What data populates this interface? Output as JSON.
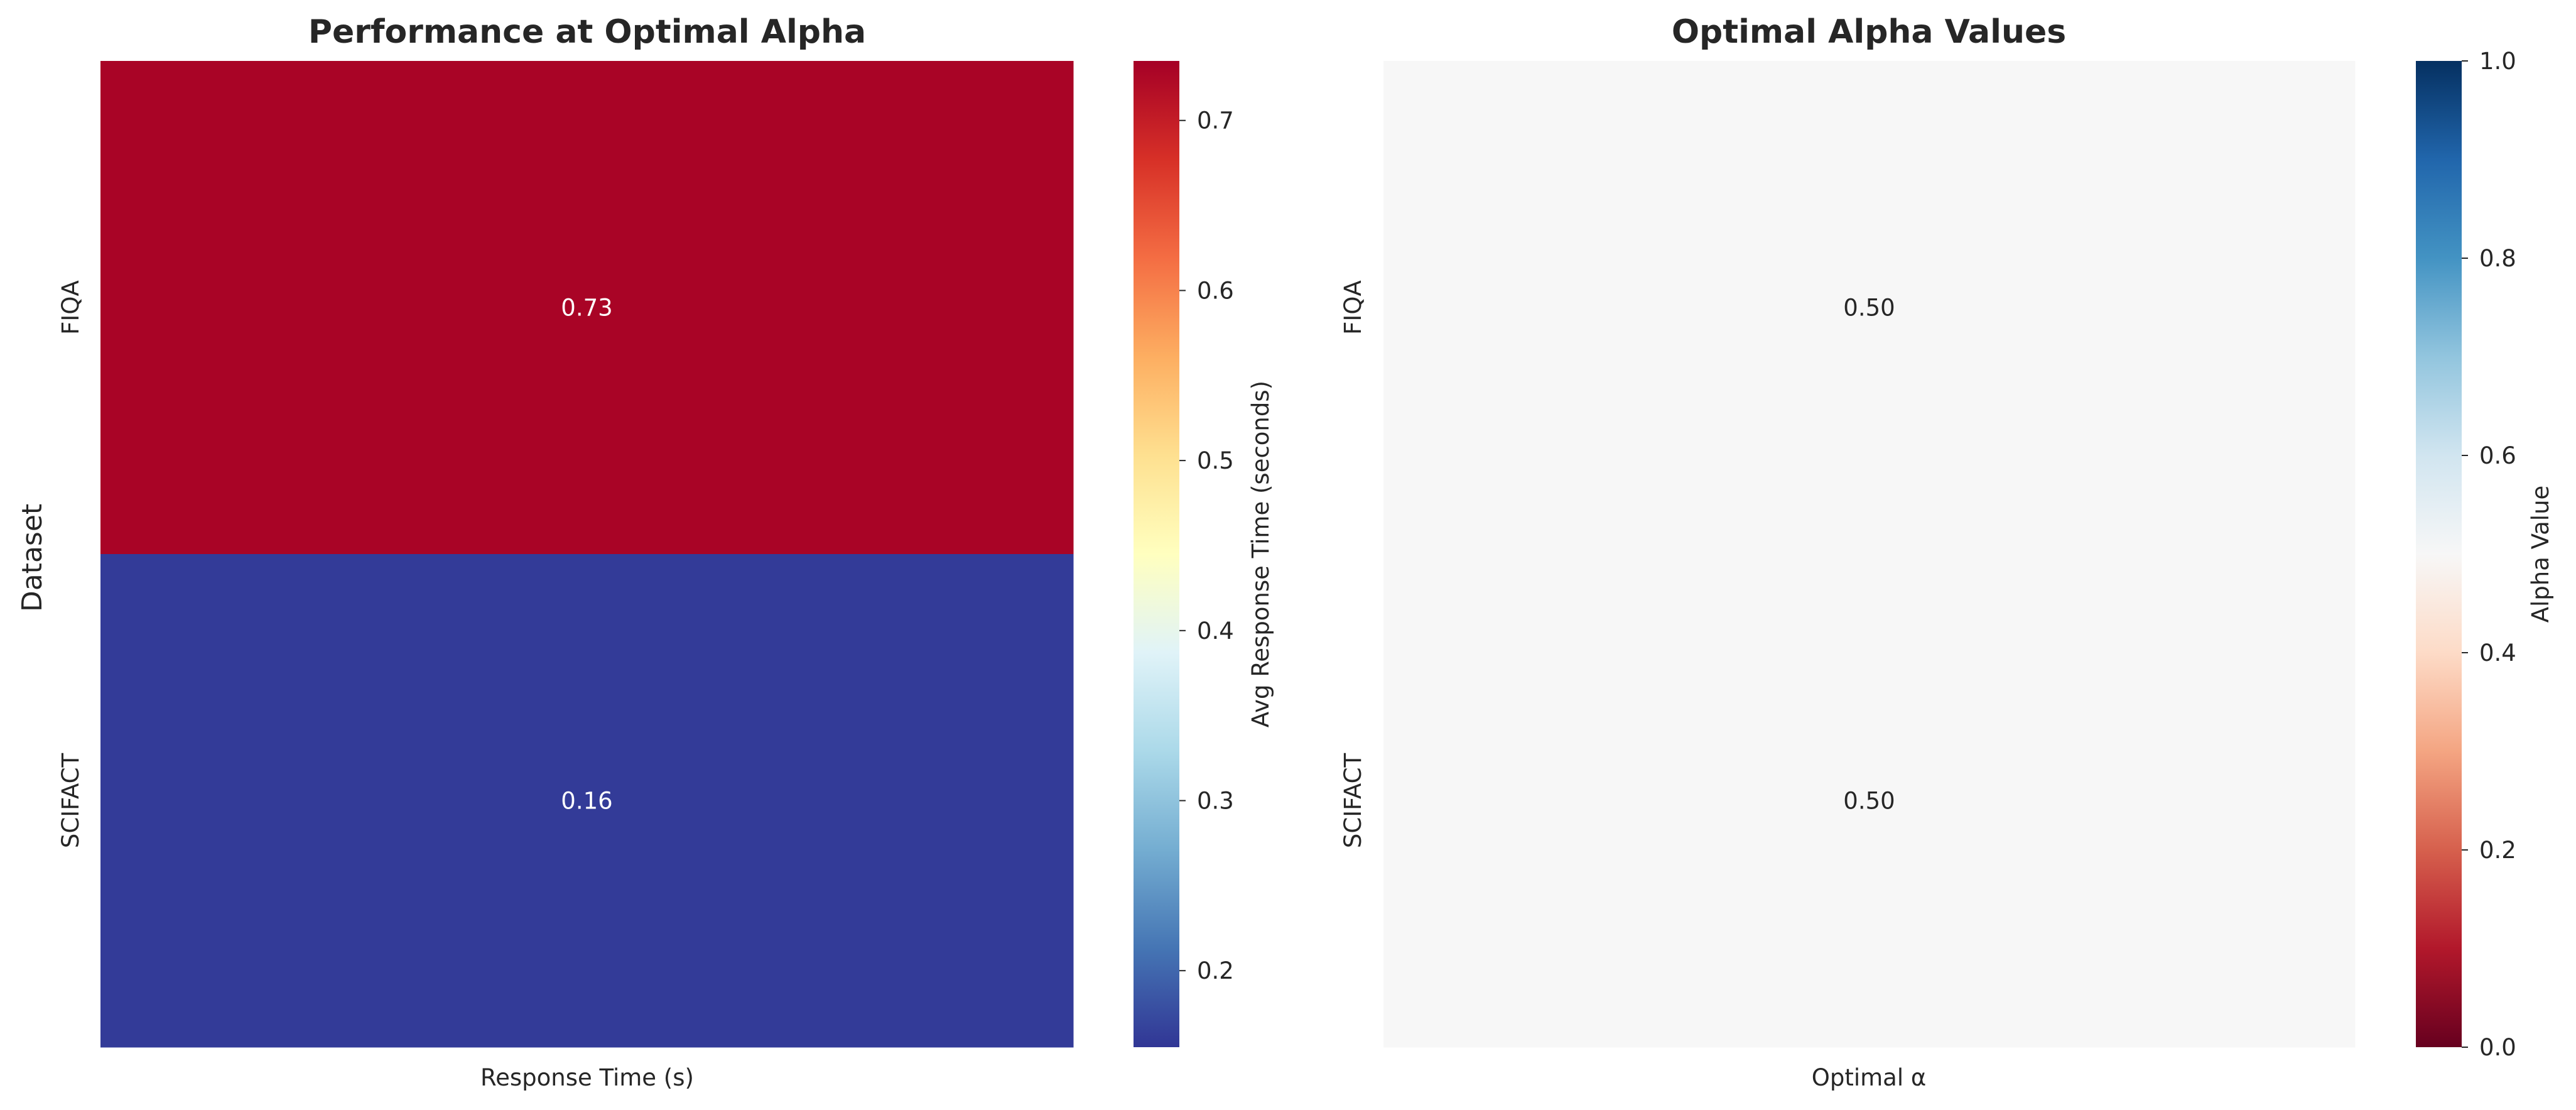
{
  "colors": {
    "fiqa_cell": "#a50026",
    "scifact_cell": "#313695",
    "alpha_cells": "#f5f6f5",
    "rdylbu_r": [
      "#313695",
      "#4575b4",
      "#74add1",
      "#abd9e9",
      "#e0f3f8",
      "#ffffbf",
      "#fee090",
      "#fdae61",
      "#f46d43",
      "#d73027",
      "#a50026"
    ],
    "rdbu": [
      "#67001f",
      "#b2182b",
      "#d6604d",
      "#f4a582",
      "#fddbc7",
      "#f7f7f7",
      "#d1e5f0",
      "#92c5de",
      "#4393c3",
      "#2166ac",
      "#053061"
    ]
  },
  "chart_data": [
    {
      "type": "heatmap",
      "title": "Performance at Optimal Alpha",
      "xlabel": "",
      "ylabel": "Dataset",
      "columns": [
        "Response Time (s)"
      ],
      "rows": [
        "FIQA",
        "SCIFACT"
      ],
      "values": [
        [
          0.73
        ],
        [
          0.16
        ]
      ],
      "annotations": [
        [
          "0.73"
        ],
        [
          "0.16"
        ]
      ],
      "colormap": "RdYlBu_r",
      "colorbar": {
        "label": "Avg Response Time (seconds)",
        "range": [
          0.155,
          0.735
        ],
        "ticks": [
          0.2,
          0.3,
          0.4,
          0.5,
          0.6,
          0.7
        ],
        "tick_labels": [
          "0.2",
          "0.3",
          "0.4",
          "0.5",
          "0.6",
          "0.7"
        ]
      }
    },
    {
      "type": "heatmap",
      "title": "Optimal Alpha Values",
      "xlabel": "",
      "ylabel": "",
      "columns": [
        "Optimal α"
      ],
      "rows": [
        "FIQA",
        "SCIFACT"
      ],
      "values": [
        [
          0.5
        ],
        [
          0.5
        ]
      ],
      "annotations": [
        [
          "0.50"
        ],
        [
          "0.50"
        ]
      ],
      "colormap": "RdBu",
      "colorbar": {
        "label": "Alpha Value",
        "range": [
          0,
          1
        ],
        "ticks": [
          0.0,
          0.2,
          0.4,
          0.6,
          0.8,
          1.0
        ],
        "tick_labels": [
          "0.0",
          "0.2",
          "0.4",
          "0.6",
          "0.8",
          "1.0"
        ]
      }
    }
  ]
}
